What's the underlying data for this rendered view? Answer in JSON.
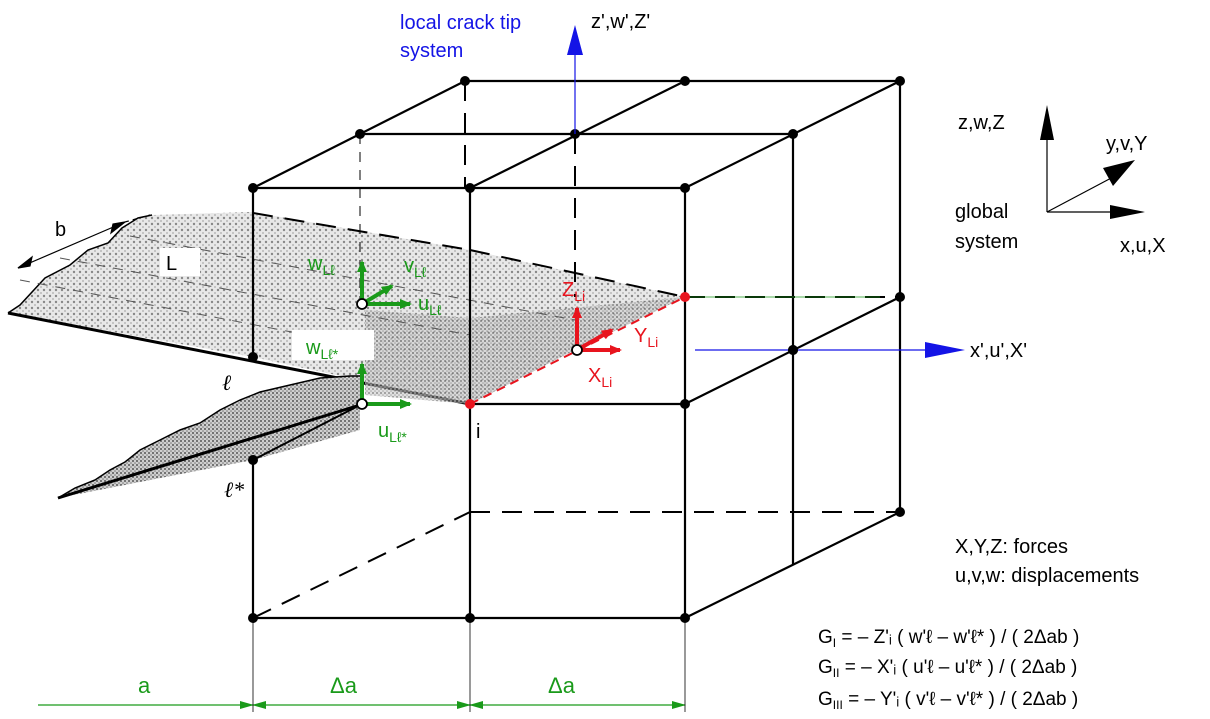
{
  "local_system": {
    "title_line1": "local crack tip",
    "title_line2": "system",
    "z_axis_label": "z',w',Z'",
    "x_axis_label": "x',u',X'"
  },
  "global_system": {
    "z_label": "z,w,Z",
    "y_label": "y,v,Y",
    "x_label": "x,u,X",
    "title_line1": "global",
    "title_line2": "system"
  },
  "labels": {
    "b": "b",
    "L": "L",
    "ell": "ℓ",
    "ell_star": "ℓ*",
    "node_i": "i",
    "w_L_ell": {
      "main": "w",
      "sub": "Lℓ"
    },
    "v_L_ell": {
      "main": "v",
      "sub": "Lℓ"
    },
    "u_L_ell": {
      "main": "u",
      "sub": "Lℓ"
    },
    "w_L_ell_star": {
      "main": "w",
      "sub": "Lℓ*"
    },
    "u_L_ell_star": {
      "main": "u",
      "sub": "Lℓ*"
    },
    "Z_Li": {
      "main": "Z",
      "sub": "Li"
    },
    "Y_Li": {
      "main": "Y",
      "sub": "Li"
    },
    "X_Li": {
      "main": "X",
      "sub": "Li"
    }
  },
  "legend": {
    "forces": "X,Y,Z: forces",
    "displacements": "u,v,w: displacements"
  },
  "equations": [
    {
      "lhs": "G",
      "sub": "I",
      "rhs": " = –  Z'ᵢ ( w'ℓ – w'ℓ* ) / ( 2Δab )"
    },
    {
      "lhs": "G",
      "sub": "II",
      "rhs": " = – X'ᵢ ( u'ℓ – u'ℓ* ) / ( 2Δab )"
    },
    {
      "lhs": "G",
      "sub": "III",
      "rhs": " = – Y'ᵢ ( v'ℓ – v'ℓ* ) / ( 2Δab )"
    }
  ],
  "dimensions": {
    "a": "a",
    "delta_a_1": "Δa",
    "delta_a_2": "Δa"
  },
  "colors": {
    "green": "#1a9a1a",
    "red": "#e8141e",
    "blue": "#1414e6",
    "black": "#000000"
  }
}
